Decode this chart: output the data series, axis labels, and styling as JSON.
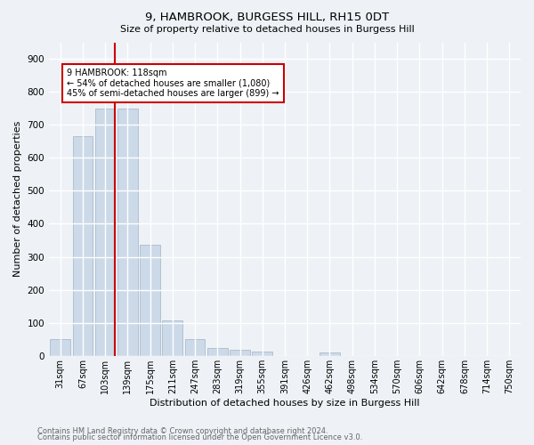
{
  "title1": "9, HAMBROOK, BURGESS HILL, RH15 0DT",
  "title2": "Size of property relative to detached houses in Burgess Hill",
  "xlabel": "Distribution of detached houses by size in Burgess Hill",
  "ylabel": "Number of detached properties",
  "bar_labels": [
    "31sqm",
    "67sqm",
    "103sqm",
    "139sqm",
    "175sqm",
    "211sqm",
    "247sqm",
    "283sqm",
    "319sqm",
    "355sqm",
    "391sqm",
    "426sqm",
    "462sqm",
    "498sqm",
    "534sqm",
    "570sqm",
    "606sqm",
    "642sqm",
    "678sqm",
    "714sqm",
    "750sqm"
  ],
  "bar_values": [
    50,
    665,
    750,
    750,
    337,
    108,
    50,
    25,
    18,
    13,
    0,
    0,
    10,
    0,
    0,
    0,
    0,
    0,
    0,
    0,
    0
  ],
  "bar_color": "#ccd9e8",
  "bar_edge_color": "#aabccc",
  "subject_line_color": "#cc0000",
  "annotation_text": "9 HAMBROOK: 118sqm\n← 54% of detached houses are smaller (1,080)\n45% of semi-detached houses are larger (899) →",
  "annotation_box_color": "#cc0000",
  "ylim": [
    0,
    950
  ],
  "yticks": [
    0,
    100,
    200,
    300,
    400,
    500,
    600,
    700,
    800,
    900
  ],
  "background_color": "#eef2f6",
  "grid_color": "#ffffff",
  "footnote1": "Contains HM Land Registry data © Crown copyright and database right 2024.",
  "footnote2": "Contains public sector information licensed under the Open Government Licence v3.0."
}
